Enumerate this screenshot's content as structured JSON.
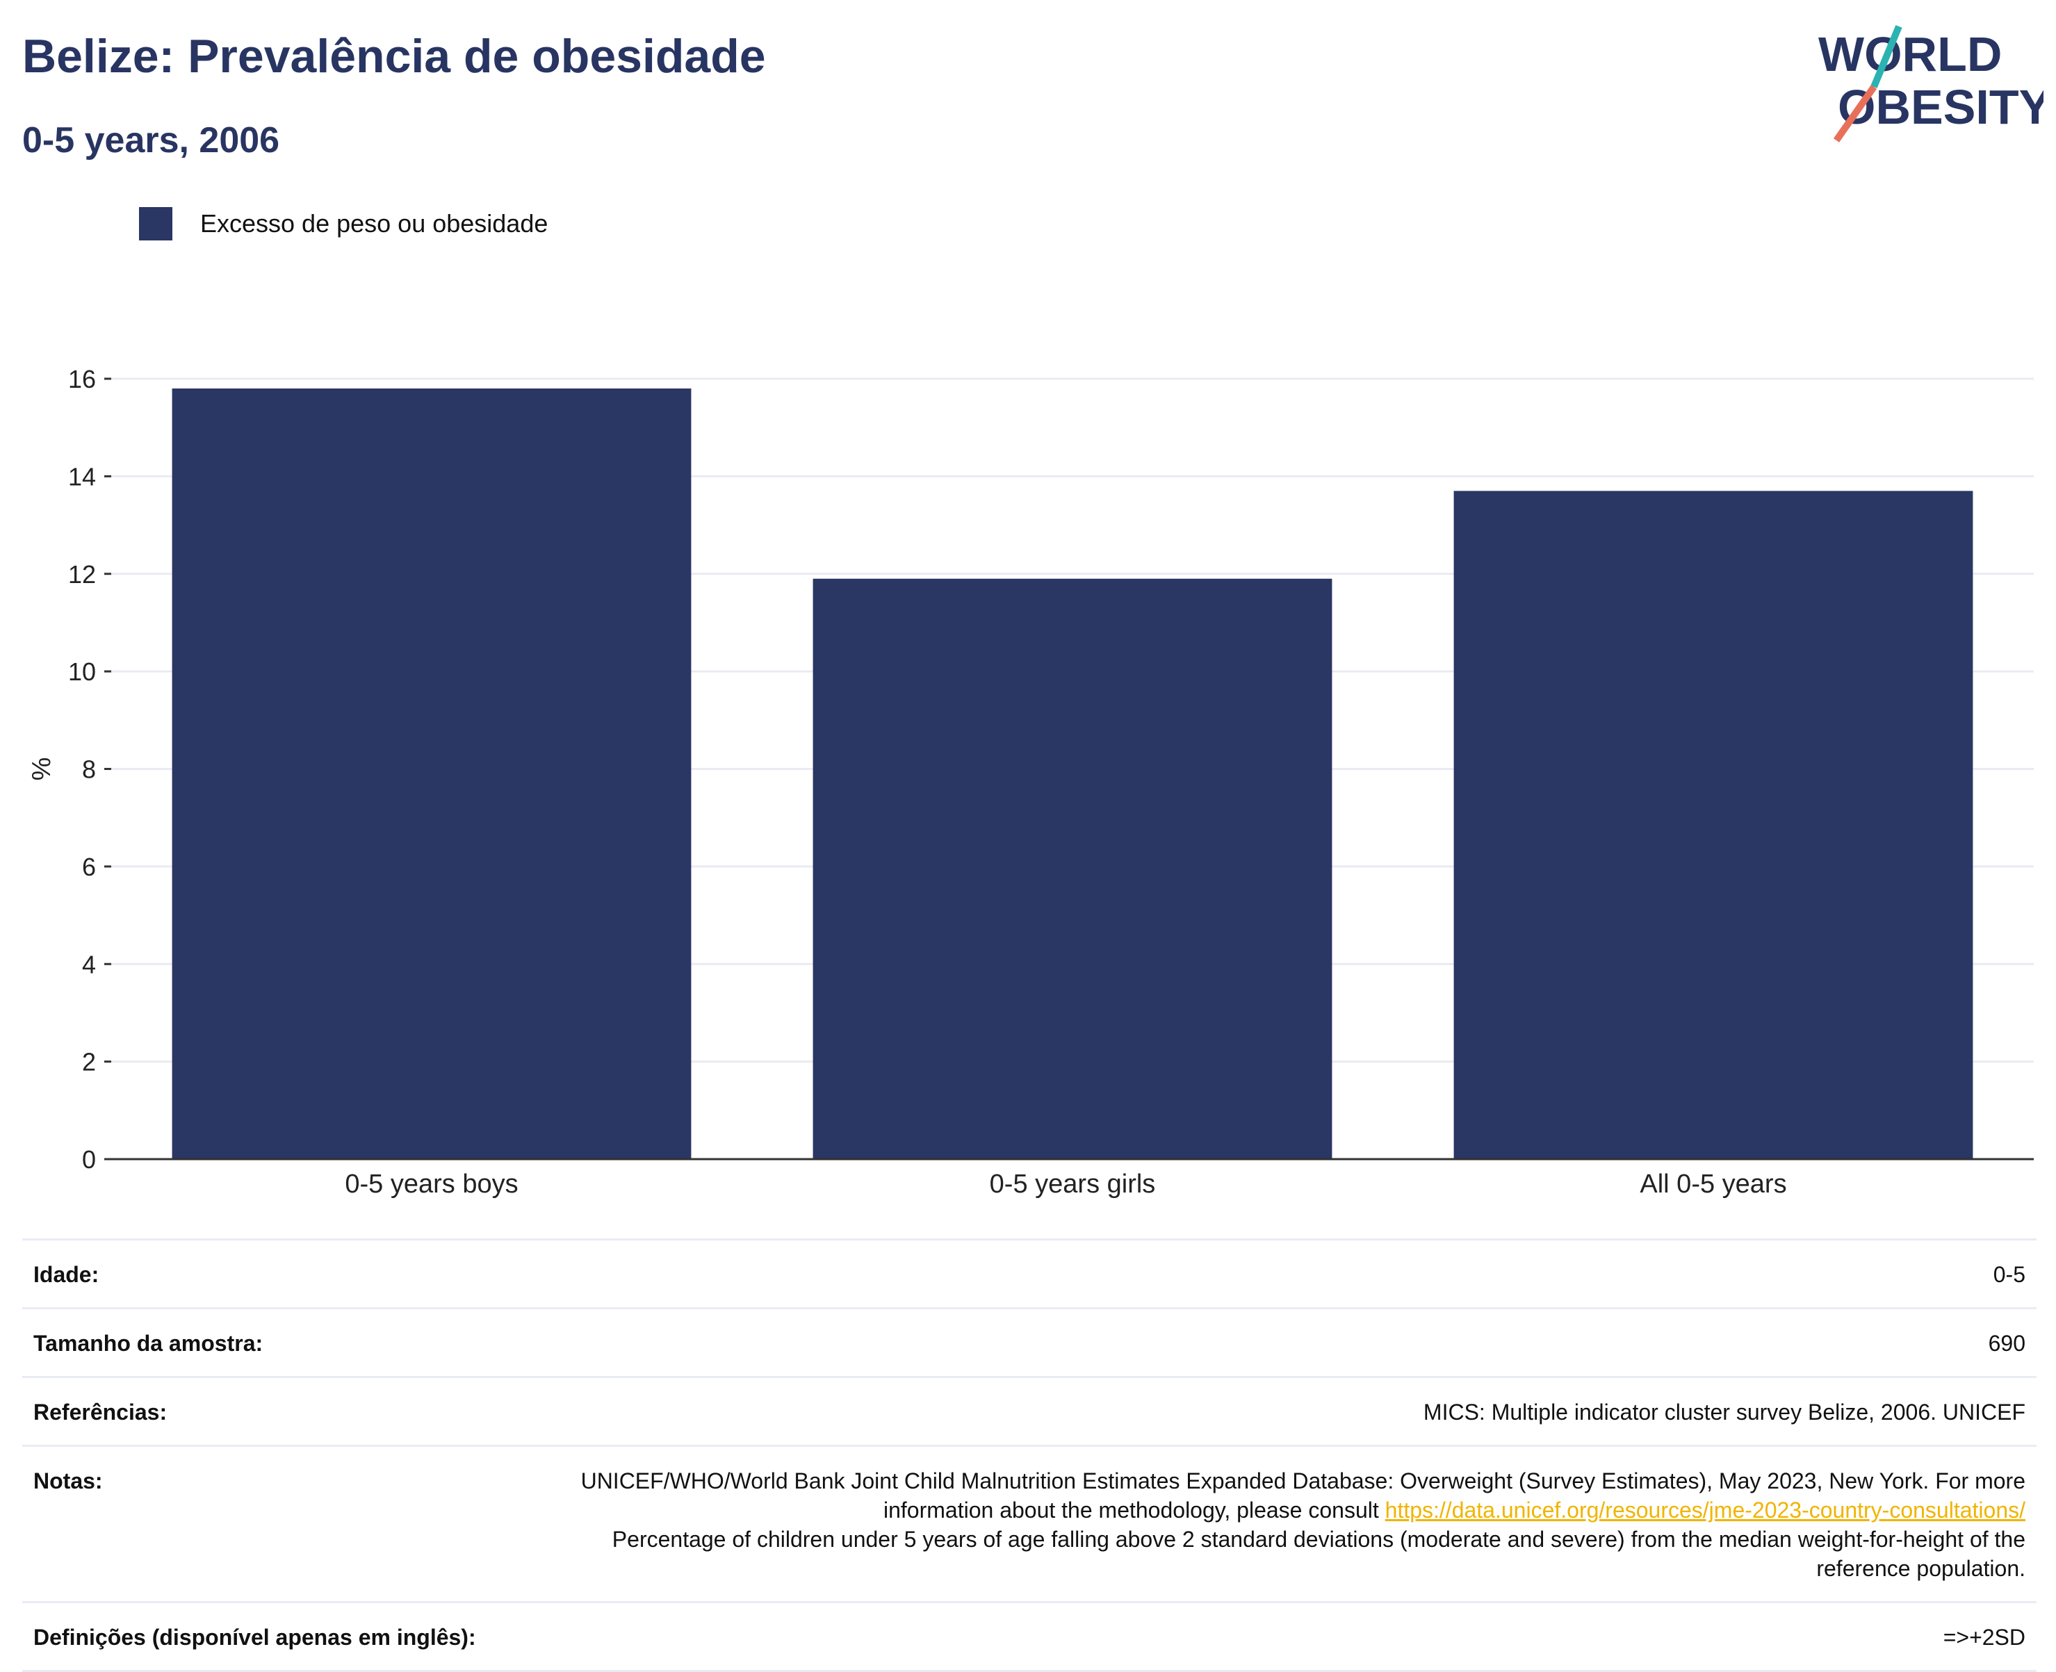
{
  "header": {
    "title": "Belize: Prevalência de obesidade",
    "subtitle": "0-5 years, 2006"
  },
  "logo": {
    "line1": "WORLD",
    "line2": "OBESITY",
    "icon": "world-obesity-logo"
  },
  "colors": {
    "bar": "#2a3663",
    "title": "#283562",
    "link": "#f0b400",
    "logo_teal": "#2bb3b1",
    "logo_coral": "#e8705a"
  },
  "chart_data": {
    "type": "bar",
    "categories": [
      "0-5 years boys",
      "0-5 years girls",
      "All 0-5 years"
    ],
    "series": [
      {
        "name": "Excesso de peso ou obesidade",
        "values": [
          15.8,
          11.9,
          13.7
        ]
      }
    ],
    "ylabel": "%",
    "ylim": [
      0,
      16
    ],
    "yticks": [
      0,
      2,
      4,
      6,
      8,
      10,
      12,
      14,
      16
    ],
    "grid": true,
    "legend": "top-left"
  },
  "info": {
    "rows": [
      {
        "label": "Idade:",
        "value": "0-5"
      },
      {
        "label": "Tamanho da amostra:",
        "value": "690"
      },
      {
        "label": "Referências:",
        "value": "MICS: Multiple indicator cluster survey Belize, 2006. UNICEF"
      }
    ],
    "notes": {
      "label": "Notas:",
      "text_before": "UNICEF/WHO/World Bank Joint Child Malnutrition Estimates Expanded Database: Overweight (Survey Estimates), May 2023, New York. For more information about the methodology, please consult ",
      "link": "https://data.unicef.org/resources/jme-2023-country-consultations/",
      "text_after": "Percentage of children under 5 years of age falling above 2 standard deviations (moderate and severe) from the median weight-for-height of the reference population."
    },
    "definitions": {
      "label": "Definições (disponível apenas em inglês):",
      "value": "=>+2SD"
    }
  }
}
